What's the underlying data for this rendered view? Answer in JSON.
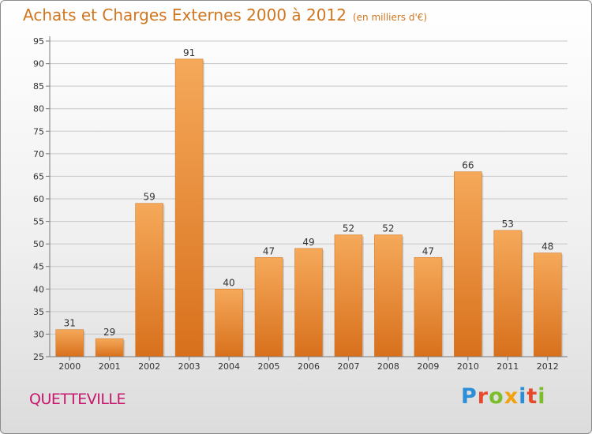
{
  "title": "Achats et Charges Externes 2000 à 2012",
  "subtitle": "(en milliers d'€)",
  "commune": "QUETTEVILLE",
  "logo": {
    "text": "Proxiti",
    "letters": [
      {
        "ch": "P",
        "color": "#2a8fd6"
      },
      {
        "ch": "r",
        "color": "#e8492b"
      },
      {
        "ch": "o",
        "color": "#7cbd2a"
      },
      {
        "ch": "x",
        "color": "#f2a20f"
      },
      {
        "ch": "i",
        "color": "#2a8fd6"
      },
      {
        "ch": "t",
        "color": "#e8492b"
      },
      {
        "ch": "i",
        "color": "#7cbd2a"
      }
    ]
  },
  "colors": {
    "title": "#d0761f",
    "commune": "#c8186e",
    "bar_light": "#f5a95a",
    "bar_dark": "#d8701c"
  },
  "chart_data": {
    "type": "bar",
    "categories": [
      "2000",
      "2001",
      "2002",
      "2003",
      "2004",
      "2005",
      "2006",
      "2007",
      "2008",
      "2009",
      "2010",
      "2011",
      "2012"
    ],
    "values": [
      31,
      29,
      59,
      91,
      40,
      47,
      49,
      52,
      52,
      47,
      66,
      53,
      48
    ],
    "title": "Achats et Charges Externes 2000 à 2012",
    "ylim": [
      25,
      95
    ],
    "yticks": [
      25,
      30,
      35,
      40,
      45,
      50,
      55,
      60,
      65,
      70,
      75,
      80,
      85,
      90,
      95
    ],
    "grid": true,
    "data_labels": true
  }
}
